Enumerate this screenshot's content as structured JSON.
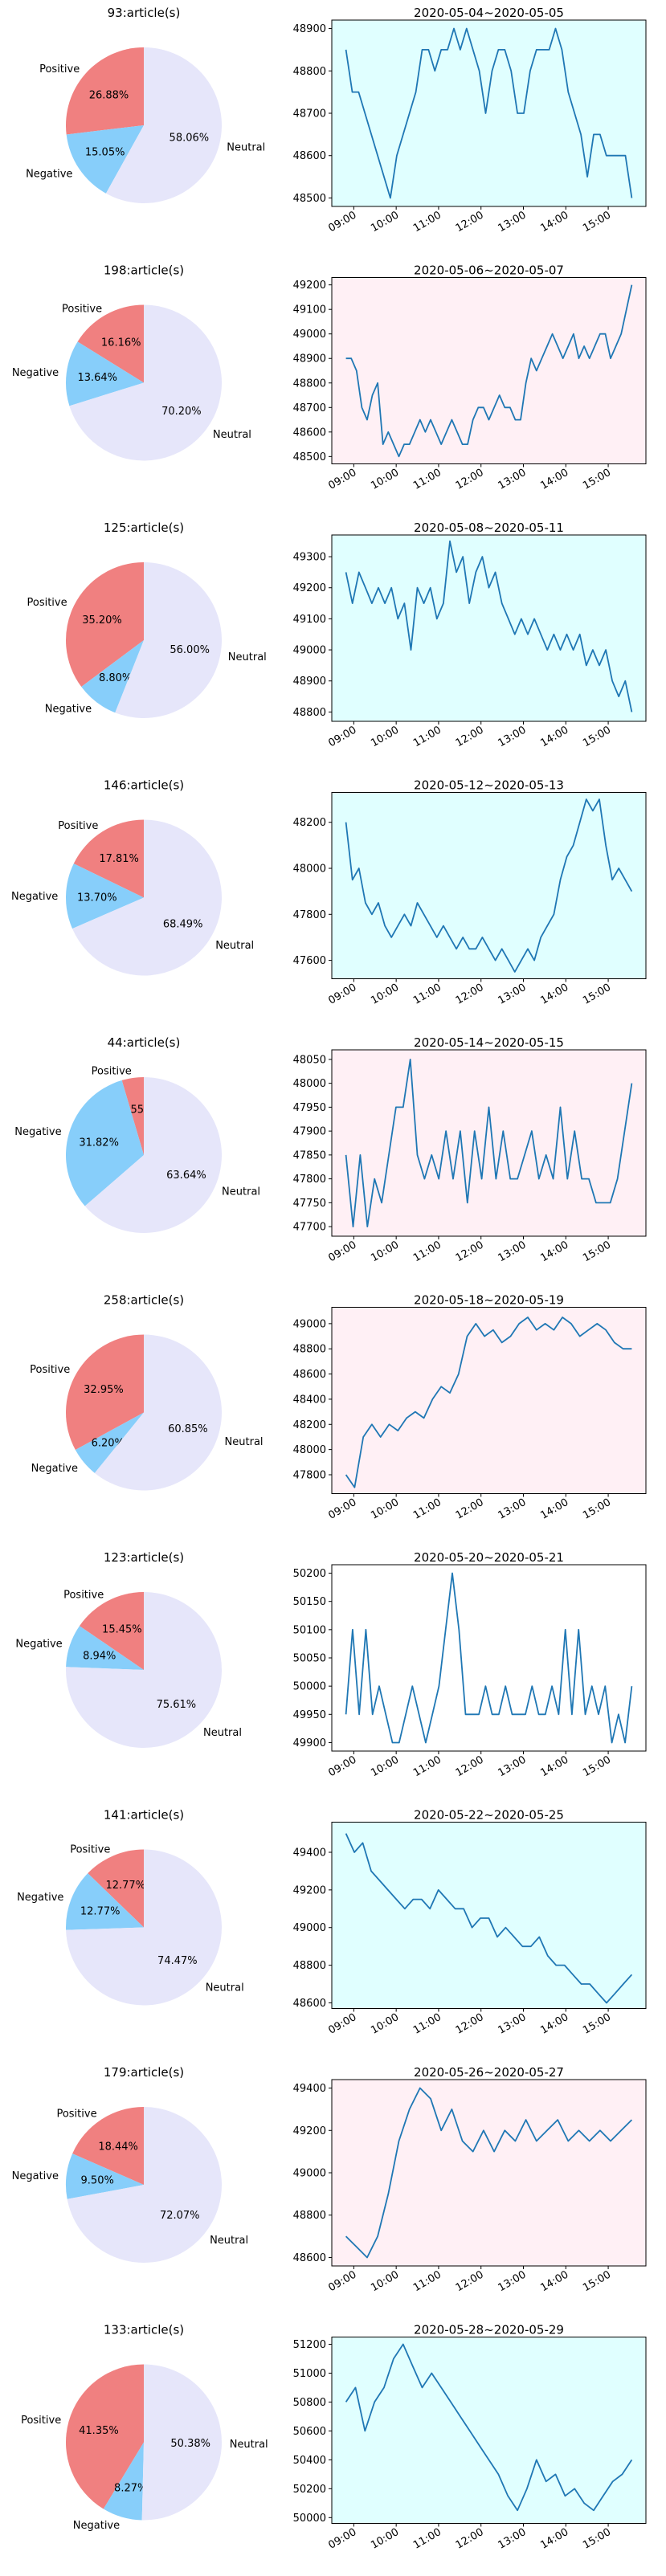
{
  "colors": {
    "positive": "#F08080",
    "negative": "#87CEFA",
    "neutral": "#E6E6FA",
    "line": "#1f77b4",
    "bg_cyan": "#E0FFFF",
    "bg_pink": "#FFF0F5",
    "bg_white": "#FFFFFF"
  },
  "chart_data": [
    {
      "type": "pie",
      "title": "93:article(s)",
      "labels": [
        "Positive",
        "Negative",
        "Neutral"
      ],
      "values": [
        26.88,
        15.05,
        58.06
      ],
      "pct_labels": [
        "26.88%",
        "15.05%",
        "58.06%"
      ]
    },
    {
      "type": "line",
      "title": "2020-05-04~2020-05-05",
      "background": "cyan",
      "x_ticks": [
        "09:00",
        "10:00",
        "11:00",
        "12:00",
        "13:00",
        "14:00",
        "15:00"
      ],
      "ylim": [
        48480,
        48920
      ],
      "y_ticks": [
        48500,
        48600,
        48700,
        48800,
        48900
      ],
      "values": [
        48850,
        48750,
        48750,
        48700,
        48650,
        48600,
        48550,
        48500,
        48600,
        48650,
        48700,
        48750,
        48850,
        48850,
        48800,
        48850,
        48850,
        48900,
        48850,
        48900,
        48850,
        48800,
        48700,
        48800,
        48850,
        48850,
        48800,
        48700,
        48700,
        48800,
        48850,
        48850,
        48850,
        48900,
        48850,
        48750,
        48700,
        48650,
        48550,
        48650,
        48650,
        48600,
        48600,
        48600,
        48600,
        48500
      ]
    },
    {
      "type": "pie",
      "title": "198:article(s)",
      "labels": [
        "Positive",
        "Negative",
        "Neutral"
      ],
      "values": [
        16.16,
        13.64,
        70.2
      ],
      "pct_labels": [
        "16.16%",
        "13.64%",
        "70.20%"
      ]
    },
    {
      "type": "line",
      "title": "2020-05-06~2020-05-07",
      "background": "pink",
      "x_ticks": [
        "09:00",
        "10:00",
        "11:00",
        "12:00",
        "13:00",
        "14:00",
        "15:00"
      ],
      "ylim": [
        48470,
        49230
      ],
      "y_ticks": [
        48500,
        48600,
        48700,
        48800,
        48900,
        49000,
        49100,
        49200
      ],
      "values": [
        48900,
        48900,
        48850,
        48700,
        48650,
        48750,
        48800,
        48550,
        48600,
        48550,
        48500,
        48550,
        48550,
        48600,
        48650,
        48600,
        48650,
        48600,
        48550,
        48600,
        48650,
        48600,
        48550,
        48550,
        48650,
        48700,
        48700,
        48650,
        48700,
        48750,
        48700,
        48700,
        48650,
        48650,
        48800,
        48900,
        48850,
        48900,
        48950,
        49000,
        48950,
        48900,
        48950,
        49000,
        48900,
        48950,
        48900,
        48950,
        49000,
        49000,
        48900,
        48950,
        49000,
        49100,
        49200
      ]
    },
    {
      "type": "pie",
      "title": "125:article(s)",
      "labels": [
        "Positive",
        "Negative",
        "Neutral"
      ],
      "values": [
        35.2,
        8.8,
        56.0
      ],
      "pct_labels": [
        "35.20%",
        "8.80%",
        "56.00%"
      ]
    },
    {
      "type": "line",
      "title": "2020-05-08~2020-05-11",
      "background": "cyan",
      "x_ticks": [
        "09:00",
        "10:00",
        "11:00",
        "12:00",
        "13:00",
        "14:00",
        "15:00"
      ],
      "ylim": [
        48770,
        49370
      ],
      "y_ticks": [
        48800,
        48900,
        49000,
        49100,
        49200,
        49300
      ],
      "values": [
        49250,
        49150,
        49250,
        49200,
        49150,
        49200,
        49150,
        49200,
        49100,
        49150,
        49000,
        49200,
        49150,
        49200,
        49100,
        49150,
        49350,
        49250,
        49300,
        49150,
        49250,
        49300,
        49200,
        49250,
        49150,
        49100,
        49050,
        49100,
        49050,
        49100,
        49050,
        49000,
        49050,
        49000,
        49050,
        49000,
        49050,
        48950,
        49000,
        48950,
        49000,
        48900,
        48850,
        48900,
        48800
      ]
    },
    {
      "type": "pie",
      "title": "146:article(s)",
      "labels": [
        "Positive",
        "Negative",
        "Neutral"
      ],
      "values": [
        17.81,
        13.7,
        68.49
      ],
      "pct_labels": [
        "17.81%",
        "13.70%",
        "68.49%"
      ]
    },
    {
      "type": "line",
      "title": "2020-05-12~2020-05-13",
      "background": "cyan",
      "x_ticks": [
        "09:00",
        "10:00",
        "11:00",
        "12:00",
        "13:00",
        "14:00",
        "15:00"
      ],
      "ylim": [
        47520,
        48330
      ],
      "y_ticks": [
        47600,
        47800,
        48000,
        48200
      ],
      "values": [
        48200,
        47950,
        48000,
        47850,
        47800,
        47850,
        47750,
        47700,
        47750,
        47800,
        47750,
        47850,
        47800,
        47750,
        47700,
        47750,
        47700,
        47650,
        47700,
        47650,
        47650,
        47700,
        47650,
        47600,
        47650,
        47600,
        47550,
        47600,
        47650,
        47600,
        47700,
        47750,
        47800,
        47950,
        48050,
        48100,
        48200,
        48300,
        48250,
        48300,
        48100,
        47950,
        48000,
        47950,
        47900
      ]
    },
    {
      "type": "pie",
      "title": "44:article(s)",
      "labels": [
        "Positive",
        "Negative",
        "Neutral"
      ],
      "values": [
        4.55,
        31.82,
        63.64
      ],
      "pct_labels": [
        "4.55%",
        "31.82%",
        "63.64%"
      ]
    },
    {
      "type": "line",
      "title": "2020-05-14~2020-05-15",
      "background": "pink",
      "x_ticks": [
        "09:00",
        "10:00",
        "11:00",
        "12:00",
        "13:00",
        "14:00",
        "15:00"
      ],
      "ylim": [
        47680,
        48070
      ],
      "y_ticks": [
        47700,
        47750,
        47800,
        47850,
        47900,
        47950,
        48000,
        48050
      ],
      "values": [
        47850,
        47700,
        47850,
        47700,
        47800,
        47750,
        47850,
        47950,
        47950,
        48050,
        47850,
        47800,
        47850,
        47800,
        47900,
        47800,
        47900,
        47750,
        47900,
        47800,
        47950,
        47800,
        47900,
        47800,
        47800,
        47850,
        47900,
        47800,
        47850,
        47800,
        47950,
        47800,
        47900,
        47800,
        47800,
        47750,
        47750,
        47750,
        47800,
        47900,
        48000
      ]
    },
    {
      "type": "pie",
      "title": "258:article(s)",
      "labels": [
        "Positive",
        "Negative",
        "Neutral"
      ],
      "values": [
        32.95,
        6.2,
        60.85
      ],
      "pct_labels": [
        "32.95%",
        "6.20%",
        "60.85%"
      ]
    },
    {
      "type": "line",
      "title": "2020-05-18~2020-05-19",
      "background": "pink",
      "x_ticks": [
        "09:00",
        "10:00",
        "11:00",
        "12:00",
        "13:00",
        "14:00",
        "15:00"
      ],
      "ylim": [
        47650,
        49130
      ],
      "y_ticks": [
        47800,
        48000,
        48200,
        48400,
        48600,
        48800,
        49000
      ],
      "values": [
        47800,
        47700,
        48100,
        48200,
        48100,
        48200,
        48150,
        48250,
        48300,
        48250,
        48400,
        48500,
        48450,
        48600,
        48900,
        49000,
        48900,
        48950,
        48850,
        48900,
        49000,
        49050,
        48950,
        49000,
        48950,
        49050,
        49000,
        48900,
        48950,
        49000,
        48950,
        48850,
        48800,
        48800
      ]
    },
    {
      "type": "pie",
      "title": "123:article(s)",
      "labels": [
        "Positive",
        "Negative",
        "Neutral"
      ],
      "values": [
        15.45,
        8.94,
        75.61
      ],
      "pct_labels": [
        "15.45%",
        "8.94%",
        "75.61%"
      ]
    },
    {
      "type": "line",
      "title": "2020-05-20~2020-05-21",
      "background": "white",
      "x_ticks": [
        "09:00",
        "10:00",
        "11:00",
        "12:00",
        "13:00",
        "14:00",
        "15:00"
      ],
      "ylim": [
        49885,
        50215
      ],
      "y_ticks": [
        49900,
        49950,
        50000,
        50050,
        50100,
        50150,
        50200
      ],
      "values": [
        49950,
        50100,
        49950,
        50100,
        49950,
        50000,
        49950,
        49900,
        49900,
        49950,
        50000,
        49950,
        49900,
        49950,
        50000,
        50100,
        50200,
        50100,
        49950,
        49950,
        49950,
        50000,
        49950,
        49950,
        50000,
        49950,
        49950,
        49950,
        50000,
        49950,
        49950,
        50000,
        49950,
        50100,
        49950,
        50100,
        49950,
        50000,
        49950,
        50000,
        49900,
        49950,
        49900,
        50000
      ]
    },
    {
      "type": "pie",
      "title": "141:article(s)",
      "labels": [
        "Positive",
        "Negative",
        "Neutral"
      ],
      "values": [
        12.77,
        12.77,
        74.47
      ],
      "pct_labels": [
        "12.77%",
        "12.77%",
        "74.47%"
      ]
    },
    {
      "type": "line",
      "title": "2020-05-22~2020-05-25",
      "background": "cyan",
      "x_ticks": [
        "09:00",
        "10:00",
        "11:00",
        "12:00",
        "13:00",
        "14:00",
        "15:00"
      ],
      "ylim": [
        48570,
        49560
      ],
      "y_ticks": [
        48600,
        48800,
        49000,
        49200,
        49400
      ],
      "values": [
        49500,
        49400,
        49450,
        49300,
        49250,
        49200,
        49150,
        49100,
        49150,
        49150,
        49100,
        49200,
        49150,
        49100,
        49100,
        49000,
        49050,
        49050,
        48950,
        49000,
        48950,
        48900,
        48900,
        48950,
        48850,
        48800,
        48800,
        48750,
        48700,
        48700,
        48650,
        48600,
        48650,
        48700,
        48750
      ]
    },
    {
      "type": "pie",
      "title": "179:article(s)",
      "labels": [
        "Positive",
        "Negative",
        "Neutral"
      ],
      "values": [
        18.44,
        9.5,
        72.07
      ],
      "pct_labels": [
        "18.44%",
        "9.50%",
        "72.07%"
      ]
    },
    {
      "type": "line",
      "title": "2020-05-26~2020-05-27",
      "background": "pink",
      "x_ticks": [
        "09:00",
        "10:00",
        "11:00",
        "12:00",
        "13:00",
        "14:00",
        "15:00"
      ],
      "ylim": [
        48560,
        49440
      ],
      "y_ticks": [
        48600,
        48800,
        49000,
        49200,
        49400
      ],
      "values": [
        48700,
        48650,
        48600,
        48700,
        48900,
        49150,
        49300,
        49400,
        49350,
        49200,
        49300,
        49150,
        49100,
        49200,
        49100,
        49200,
        49150,
        49250,
        49150,
        49200,
        49250,
        49150,
        49200,
        49150,
        49200,
        49150,
        49200,
        49250
      ]
    },
    {
      "type": "pie",
      "title": "133:article(s)",
      "labels": [
        "Positive",
        "Negative",
        "Neutral"
      ],
      "values": [
        41.35,
        8.27,
        50.38
      ],
      "pct_labels": [
        "41.35%",
        "8.27%",
        "50.38%"
      ]
    },
    {
      "type": "line",
      "title": "2020-05-28~2020-05-29",
      "background": "cyan",
      "x_ticks": [
        "09:00",
        "10:00",
        "11:00",
        "12:00",
        "13:00",
        "14:00",
        "15:00"
      ],
      "ylim": [
        49960,
        51250
      ],
      "y_ticks": [
        50000,
        50200,
        50400,
        50600,
        50800,
        51000,
        51200
      ],
      "values": [
        50800,
        50900,
        50600,
        50800,
        50900,
        51100,
        51200,
        51050,
        50900,
        51000,
        50900,
        50800,
        50700,
        50600,
        50500,
        50400,
        50300,
        50150,
        50050,
        50200,
        50400,
        50250,
        50300,
        50150,
        50200,
        50100,
        50050,
        50150,
        50250,
        50300,
        50400
      ]
    }
  ]
}
